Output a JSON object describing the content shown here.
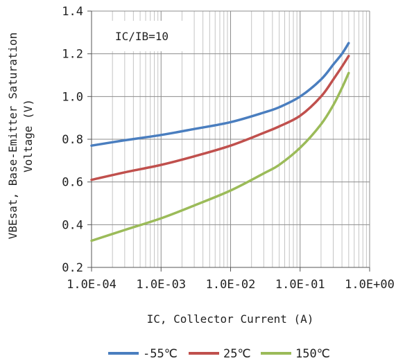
{
  "chart_data": {
    "type": "line",
    "title": "",
    "xlabel": "IC, Collector Current (A)",
    "ylabel_lines": [
      "VBEsat, Base-Emitter Saturation",
      "Voltage (V)"
    ],
    "xscale": "log",
    "xlim": [
      0.0001,
      1.0
    ],
    "ylim": [
      0.2,
      1.4
    ],
    "x_ticks": [
      0.0001,
      0.001,
      0.01,
      0.1,
      1.0
    ],
    "x_tick_labels": [
      "1.0E-04",
      "1.0E-03",
      "1.0E-02",
      "1.0E-01",
      "1.0E+00"
    ],
    "y_ticks": [
      0.2,
      0.4,
      0.6,
      0.8,
      1.0,
      1.2,
      1.4
    ],
    "y_tick_labels": [
      "0.2",
      "0.4",
      "0.6",
      "0.8",
      "1.0",
      "1.2",
      "1.4"
    ],
    "grid": true,
    "legend_position": "bottom",
    "annotation": "IC/IB=10",
    "series": [
      {
        "name": "-55℃",
        "color": "#4a7ebf",
        "x": [
          0.0001,
          0.0003,
          0.001,
          0.003,
          0.01,
          0.03,
          0.05,
          0.1,
          0.2,
          0.3,
          0.4,
          0.5
        ],
        "y": [
          0.77,
          0.795,
          0.82,
          0.848,
          0.88,
          0.925,
          0.95,
          1.0,
          1.08,
          1.15,
          1.2,
          1.25
        ]
      },
      {
        "name": "25℃",
        "color": "#c0504d",
        "x": [
          0.0001,
          0.0003,
          0.001,
          0.003,
          0.01,
          0.03,
          0.05,
          0.1,
          0.2,
          0.3,
          0.4,
          0.5
        ],
        "y": [
          0.61,
          0.645,
          0.68,
          0.72,
          0.77,
          0.83,
          0.86,
          0.91,
          1.0,
          1.08,
          1.14,
          1.19
        ]
      },
      {
        "name": "150℃",
        "color": "#9bbb59",
        "x": [
          0.0001,
          0.0003,
          0.001,
          0.003,
          0.01,
          0.03,
          0.05,
          0.1,
          0.2,
          0.3,
          0.4,
          0.5
        ],
        "y": [
          0.325,
          0.375,
          0.43,
          0.49,
          0.56,
          0.64,
          0.68,
          0.76,
          0.87,
          0.96,
          1.04,
          1.11
        ]
      }
    ]
  }
}
